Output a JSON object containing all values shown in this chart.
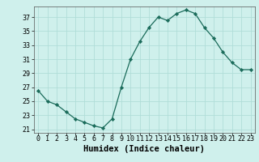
{
  "x": [
    0,
    1,
    2,
    3,
    4,
    5,
    6,
    7,
    8,
    9,
    10,
    11,
    12,
    13,
    14,
    15,
    16,
    17,
    18,
    19,
    20,
    21,
    22,
    23
  ],
  "y": [
    26.5,
    25.0,
    24.5,
    23.5,
    22.5,
    22.0,
    21.5,
    21.2,
    22.5,
    27.0,
    31.0,
    33.5,
    35.5,
    37.0,
    36.5,
    37.5,
    38.0,
    37.5,
    35.5,
    34.0,
    32.0,
    30.5,
    29.5,
    29.5
  ],
  "xlabel": "Humidex (Indice chaleur)",
  "line_color": "#1a6b5a",
  "marker_color": "#1a6b5a",
  "bg_color": "#cff0ec",
  "grid_color": "#b0ddd8",
  "ylim": [
    20.5,
    38.5
  ],
  "yticks": [
    21,
    23,
    25,
    27,
    29,
    31,
    33,
    35,
    37
  ],
  "xticks": [
    0,
    1,
    2,
    3,
    4,
    5,
    6,
    7,
    8,
    9,
    10,
    11,
    12,
    13,
    14,
    15,
    16,
    17,
    18,
    19,
    20,
    21,
    22,
    23
  ],
  "xlim": [
    -0.5,
    23.5
  ],
  "tick_fontsize": 6,
  "xlabel_fontsize": 7.5
}
